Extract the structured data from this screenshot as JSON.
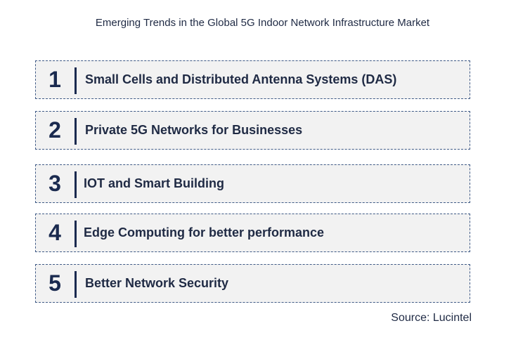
{
  "title": "Emerging Trends in the Global 5G Indoor Network Infrastructure Market",
  "trends": [
    {
      "number": "1",
      "label": "Small Cells and Distributed Antenna Systems (DAS)"
    },
    {
      "number": "2",
      "label": "Private 5G Networks for Businesses"
    },
    {
      "number": "3",
      "label": "IOT and Smart Building"
    },
    {
      "number": "4",
      "label": "Edge Computing for better performance"
    },
    {
      "number": "5",
      "label": "Better Network Security"
    }
  ],
  "source": "Source: Lucintel",
  "colors": {
    "text": "#1f2a44",
    "number": "#1a2a4f",
    "row_background": "#f2f2f2",
    "row_border": "#3f5a86"
  }
}
